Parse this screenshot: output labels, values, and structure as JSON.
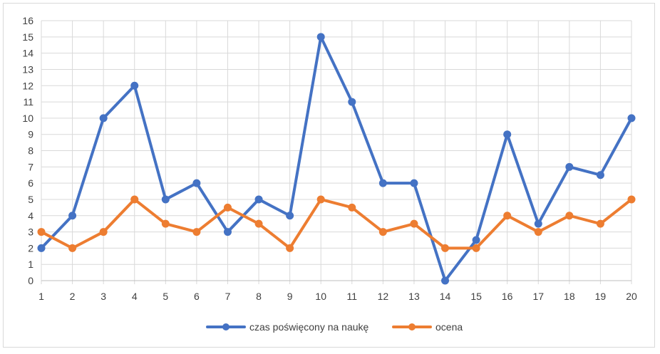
{
  "chart_data": {
    "type": "line",
    "title": "",
    "xlabel": "",
    "ylabel": "",
    "x": [
      1,
      2,
      3,
      4,
      5,
      6,
      7,
      8,
      9,
      10,
      11,
      12,
      13,
      14,
      15,
      16,
      17,
      18,
      19,
      20
    ],
    "ylim": [
      0,
      16
    ],
    "y_ticks": [
      0,
      1,
      2,
      3,
      4,
      5,
      6,
      7,
      8,
      9,
      10,
      11,
      12,
      13,
      14,
      15,
      16
    ],
    "grid": "horizontal",
    "legend_position": "bottom",
    "series": [
      {
        "name": "czas poświęcony na naukę",
        "color": "#4472c4",
        "values": [
          2,
          4,
          10,
          12,
          5,
          6,
          3,
          5,
          4,
          15,
          11,
          6,
          6,
          0,
          2.5,
          9,
          3.5,
          7,
          6.5,
          10
        ]
      },
      {
        "name": "ocena",
        "color": "#ed7d31",
        "values": [
          3,
          2,
          3,
          5,
          3.5,
          3,
          4.5,
          3.5,
          2,
          5,
          4.5,
          3,
          3.5,
          2,
          2,
          4,
          3,
          4,
          3.5,
          5
        ]
      }
    ]
  }
}
